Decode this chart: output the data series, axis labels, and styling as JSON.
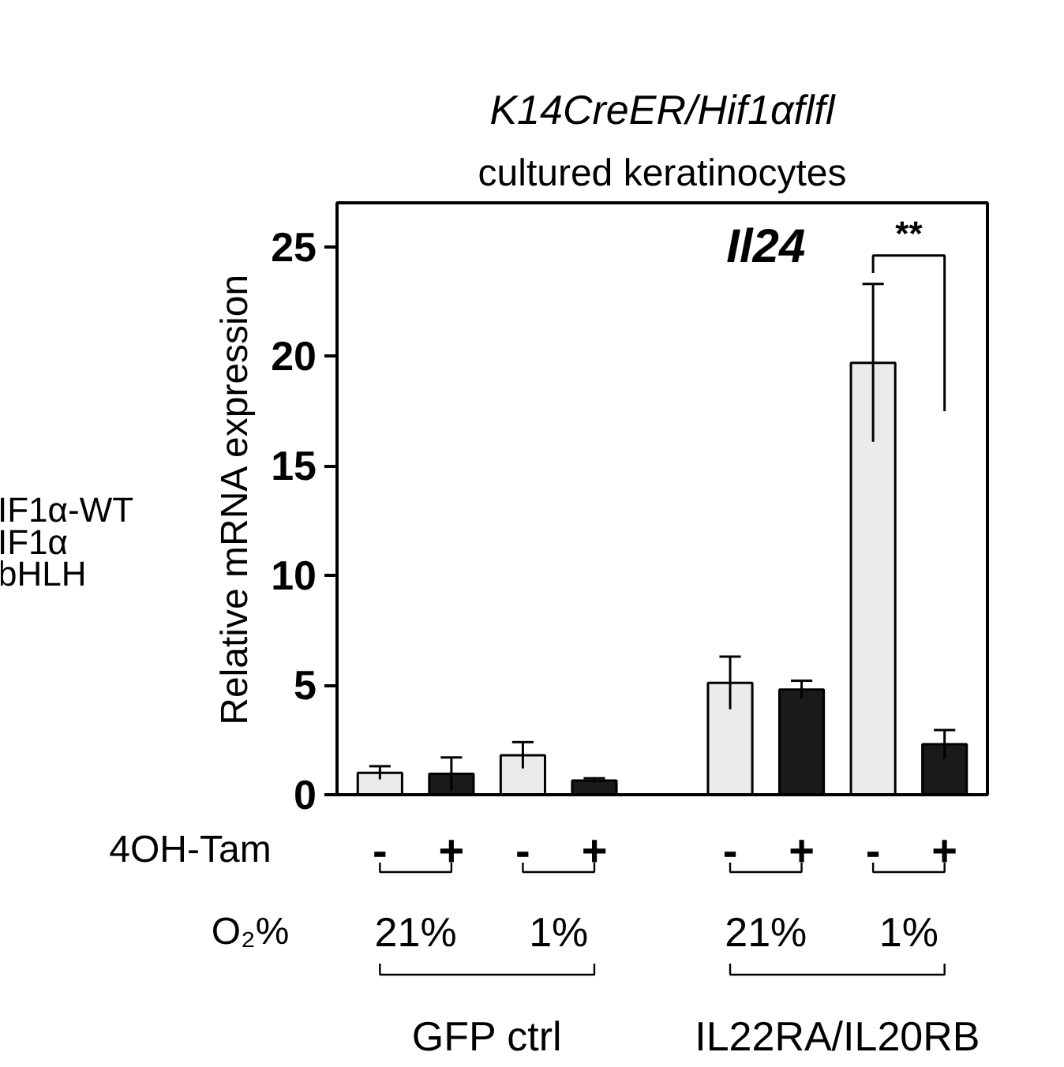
{
  "chart_data": {
    "type": "bar",
    "title": "K14CreER/Hif1αflfl",
    "subtitle": "cultured keratinocytes",
    "ylabel": "Relative mRNA expression",
    "categories": [
      "-",
      "+",
      "-",
      "+",
      "-",
      "+",
      "-",
      "+"
    ],
    "values": [
      1.0,
      0.95,
      1.8,
      0.65,
      5.1,
      4.8,
      19.7,
      2.3
    ],
    "errors": [
      0.3,
      0.75,
      0.6,
      0.1,
      1.2,
      0.4,
      3.6,
      0.65
    ],
    "colors": [
      "#ebebeb",
      "#1a1a1a",
      "#ebebeb",
      "#1a1a1a",
      "#ebebeb",
      "#1a1a1a",
      "#ebebeb",
      "#1a1a1a"
    ],
    "ylim": [
      0,
      27
    ],
    "yticks": [
      0,
      5,
      10,
      15,
      20,
      25
    ],
    "annotations": [
      "Il24",
      "**",
      "4OH-Tam",
      "O₂%",
      "21%",
      "1%",
      "21%",
      "1%",
      "GFP ctrl",
      "IL22RA/IL20RB",
      "IF1α-WT",
      "IF1α",
      "bHLH"
    ]
  }
}
